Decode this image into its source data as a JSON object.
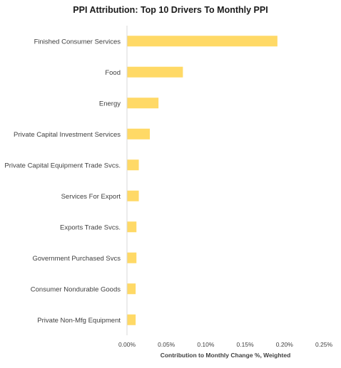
{
  "chart_data": {
    "type": "bar",
    "orientation": "horizontal",
    "title": "PPI Attribution: Top 10 Drivers To Monthly PPI",
    "xlabel": "Contribution to Monthly Change %, Weighted",
    "ylabel": "",
    "categories": [
      "Finished Consumer Services",
      "Food",
      "Energy",
      "Private Capital Investment Services",
      "Private Capital Equipment Trade Svcs.",
      "Services For Export",
      "Exports Trade Svcs.",
      "Government Purchased Svcs",
      "Consumer Nondurable Goods",
      "Private Non-Mfg Equipment"
    ],
    "values": [
      0.191,
      0.071,
      0.04,
      0.029,
      0.015,
      0.015,
      0.012,
      0.012,
      0.011,
      0.011
    ],
    "xlim": [
      0,
      0.25
    ],
    "x_ticks": [
      "0.00%",
      "0.05%",
      "0.10%",
      "0.15%",
      "0.20%",
      "0.25%"
    ],
    "grid": false,
    "bar_color": "#FFD966",
    "axis_color": "#d9d9d9"
  }
}
